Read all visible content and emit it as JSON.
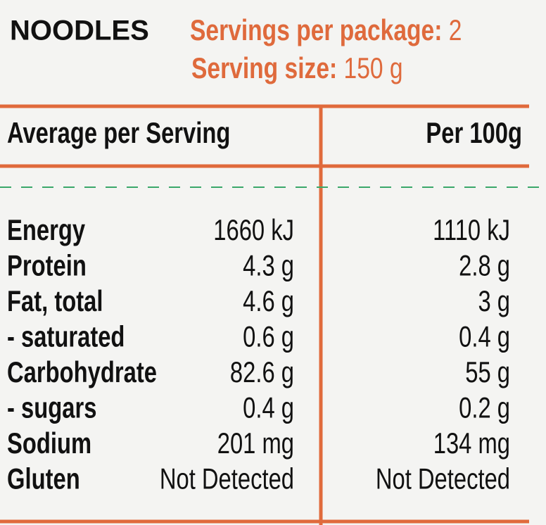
{
  "header": {
    "title": "NOODLES",
    "servings_label": "Servings per package:",
    "servings_value": "2",
    "size_label": "Serving size:",
    "size_value": "150 g"
  },
  "table": {
    "headers": [
      "Average per Serving",
      "Per 100g"
    ],
    "rows": [
      [
        "Energy",
        "1660 kJ",
        "1110 kJ"
      ],
      [
        "Protein",
        "4.3 g",
        "2.8 g"
      ],
      [
        "Fat, total",
        "4.6 g",
        "3 g"
      ],
      [
        "- saturated",
        "0.6 g",
        "0.4 g"
      ],
      [
        "Carbohydrate",
        "82.6 g",
        "55 g"
      ],
      [
        "- sugars",
        "0.4 g",
        "0.2 g"
      ],
      [
        "Sodium",
        "201 mg",
        "134 mg"
      ],
      [
        "Gluten",
        "Not Detected",
        "Not Detected"
      ]
    ]
  }
}
